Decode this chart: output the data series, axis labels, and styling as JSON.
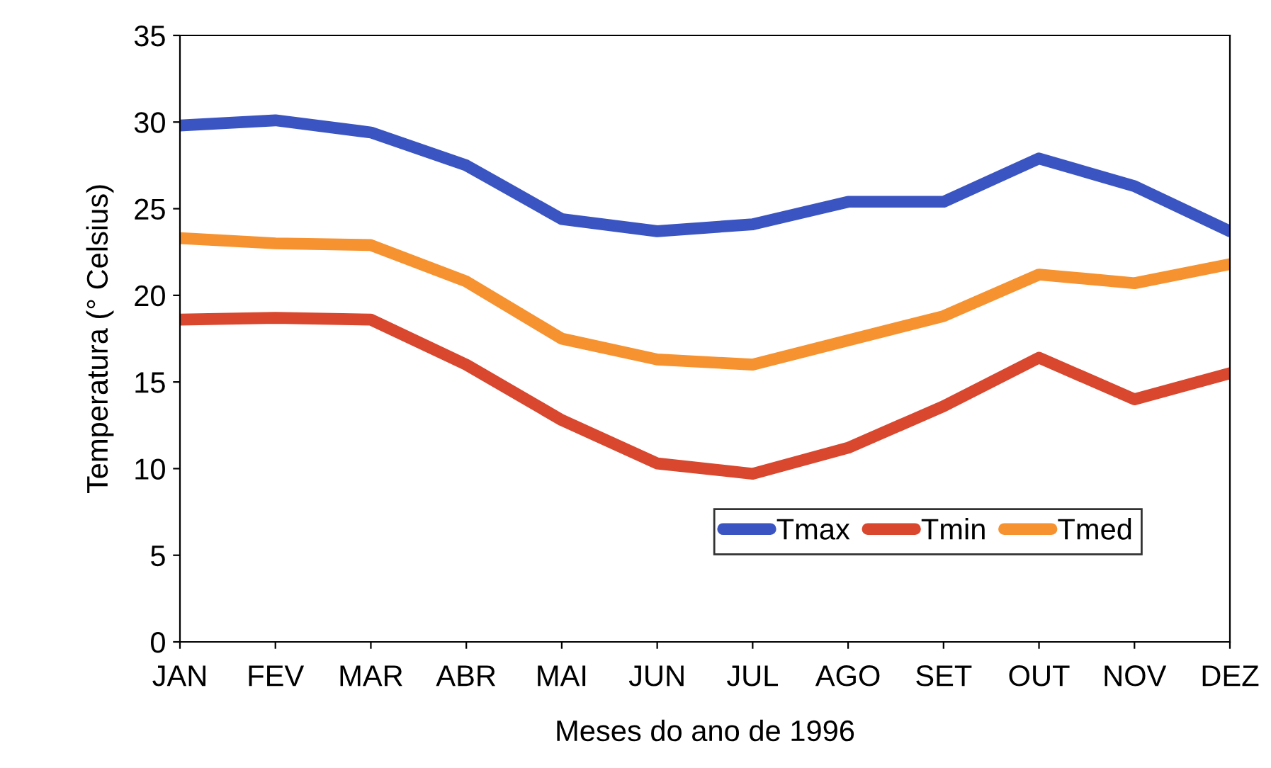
{
  "chart_data": {
    "type": "line",
    "xlabel": "Meses do ano de 1996",
    "ylabel": "Temperatura (° Celsius)",
    "categories": [
      "JAN",
      "FEV",
      "MAR",
      "ABR",
      "MAI",
      "JUN",
      "JUL",
      "AGO",
      "SET",
      "OUT",
      "NOV",
      "DEZ"
    ],
    "series": [
      {
        "name": "Tmax",
        "color": "#3a55c2",
        "values": [
          29.8,
          30.1,
          29.4,
          27.5,
          24.4,
          23.7,
          24.1,
          25.4,
          25.4,
          27.9,
          26.3,
          23.7
        ]
      },
      {
        "name": "Tmin",
        "color": "#d8472e",
        "values": [
          18.6,
          18.7,
          18.6,
          16.0,
          12.8,
          10.3,
          9.7,
          11.2,
          13.6,
          16.4,
          14.0,
          15.5
        ]
      },
      {
        "name": "Tmed",
        "color": "#f6922f",
        "values": [
          23.3,
          23.0,
          22.9,
          20.8,
          17.5,
          16.3,
          16.0,
          17.4,
          18.8,
          21.2,
          20.7,
          21.8
        ]
      }
    ],
    "ylim": [
      0,
      35
    ],
    "yticks": [
      0,
      5,
      10,
      15,
      20,
      25,
      30,
      35
    ],
    "grid": false,
    "legend": "bottom right",
    "marker": "none",
    "line_style": "solid"
  }
}
